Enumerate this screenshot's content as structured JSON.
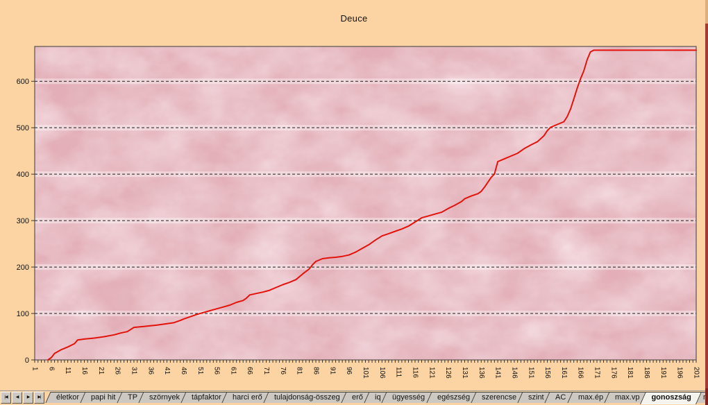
{
  "page": {
    "background_color": "#fcd4a3",
    "plot_background_color": "#e3aeb7",
    "line_color": "#e3120b",
    "right_edge_colors": [
      "#dfae7e",
      "#a03c30"
    ]
  },
  "chart_data": {
    "type": "line",
    "title": "Deuce",
    "xlabel": "",
    "ylabel": "",
    "legend": "none",
    "grid": "horizontal dashed black lines every 100",
    "x_range": [
      1,
      201
    ],
    "x_tick_labels": [
      1,
      6,
      11,
      16,
      21,
      26,
      31,
      36,
      41,
      46,
      51,
      56,
      61,
      66,
      71,
      76,
      81,
      86,
      91,
      96,
      101,
      106,
      111,
      116,
      121,
      126,
      131,
      136,
      141,
      146,
      151,
      156,
      161,
      166,
      171,
      176,
      181,
      186,
      191,
      196,
      201
    ],
    "y_ticks": [
      0,
      100,
      200,
      300,
      400,
      500,
      600
    ],
    "ylim": [
      0,
      675
    ],
    "series": [
      {
        "name": "Deuce",
        "color": "#e3120b",
        "points": [
          [
            5,
            0
          ],
          [
            6,
            5
          ],
          [
            7,
            14
          ],
          [
            9,
            22
          ],
          [
            11,
            28
          ],
          [
            13,
            35
          ],
          [
            14,
            43
          ],
          [
            16,
            45
          ],
          [
            19,
            47
          ],
          [
            22,
            50
          ],
          [
            25,
            54
          ],
          [
            27,
            58
          ],
          [
            29,
            61
          ],
          [
            31,
            70
          ],
          [
            34,
            72
          ],
          [
            38,
            75
          ],
          [
            41,
            78
          ],
          [
            43,
            80
          ],
          [
            45,
            85
          ],
          [
            46,
            88
          ],
          [
            48,
            93
          ],
          [
            50,
            98
          ],
          [
            52,
            102
          ],
          [
            54,
            106
          ],
          [
            56,
            110
          ],
          [
            58,
            114
          ],
          [
            60,
            118
          ],
          [
            62,
            124
          ],
          [
            64,
            128
          ],
          [
            65,
            133
          ],
          [
            66,
            140
          ],
          [
            68,
            143
          ],
          [
            70,
            146
          ],
          [
            72,
            150
          ],
          [
            74,
            156
          ],
          [
            76,
            162
          ],
          [
            78,
            167
          ],
          [
            80,
            173
          ],
          [
            82,
            185
          ],
          [
            84,
            196
          ],
          [
            85,
            205
          ],
          [
            86,
            212
          ],
          [
            88,
            218
          ],
          [
            90,
            220
          ],
          [
            92,
            221
          ],
          [
            94,
            223
          ],
          [
            96,
            226
          ],
          [
            98,
            232
          ],
          [
            100,
            240
          ],
          [
            102,
            248
          ],
          [
            104,
            258
          ],
          [
            106,
            267
          ],
          [
            108,
            272
          ],
          [
            110,
            277
          ],
          [
            112,
            282
          ],
          [
            114,
            288
          ],
          [
            116,
            297
          ],
          [
            118,
            306
          ],
          [
            120,
            310
          ],
          [
            122,
            314
          ],
          [
            124,
            318
          ],
          [
            126,
            326
          ],
          [
            128,
            333
          ],
          [
            130,
            341
          ],
          [
            131,
            347
          ],
          [
            133,
            353
          ],
          [
            135,
            358
          ],
          [
            136,
            363
          ],
          [
            137,
            372
          ],
          [
            139,
            393
          ],
          [
            140,
            400
          ],
          [
            141,
            427
          ],
          [
            143,
            433
          ],
          [
            145,
            439
          ],
          [
            147,
            445
          ],
          [
            149,
            455
          ],
          [
            151,
            463
          ],
          [
            153,
            470
          ],
          [
            155,
            483
          ],
          [
            156,
            494
          ],
          [
            157,
            501
          ],
          [
            159,
            507
          ],
          [
            161,
            513
          ],
          [
            162,
            524
          ],
          [
            163,
            540
          ],
          [
            164,
            562
          ],
          [
            165,
            585
          ],
          [
            166,
            605
          ],
          [
            167,
            622
          ],
          [
            168,
            646
          ],
          [
            169,
            663
          ],
          [
            170,
            667
          ],
          [
            201,
            667
          ]
        ]
      }
    ]
  },
  "sheet_tabs": {
    "nav_buttons": [
      {
        "name": "first-sheet",
        "glyph": "|◀"
      },
      {
        "name": "prev-sheet",
        "glyph": "◀"
      },
      {
        "name": "next-sheet",
        "glyph": "▶"
      },
      {
        "name": "last-sheet",
        "glyph": "▶|"
      }
    ],
    "tabs": [
      "életkor",
      "papi hit",
      "TP",
      "szörnyek",
      "tápfaktor",
      "harci erő",
      "tulajdonság-összeg",
      "erő",
      "iq",
      "ügyesség",
      "egészség",
      "szerencse",
      "szint",
      "AC",
      "max.ép",
      "max.vp",
      "gonoszság",
      "ma"
    ],
    "selected": "gonoszság"
  }
}
